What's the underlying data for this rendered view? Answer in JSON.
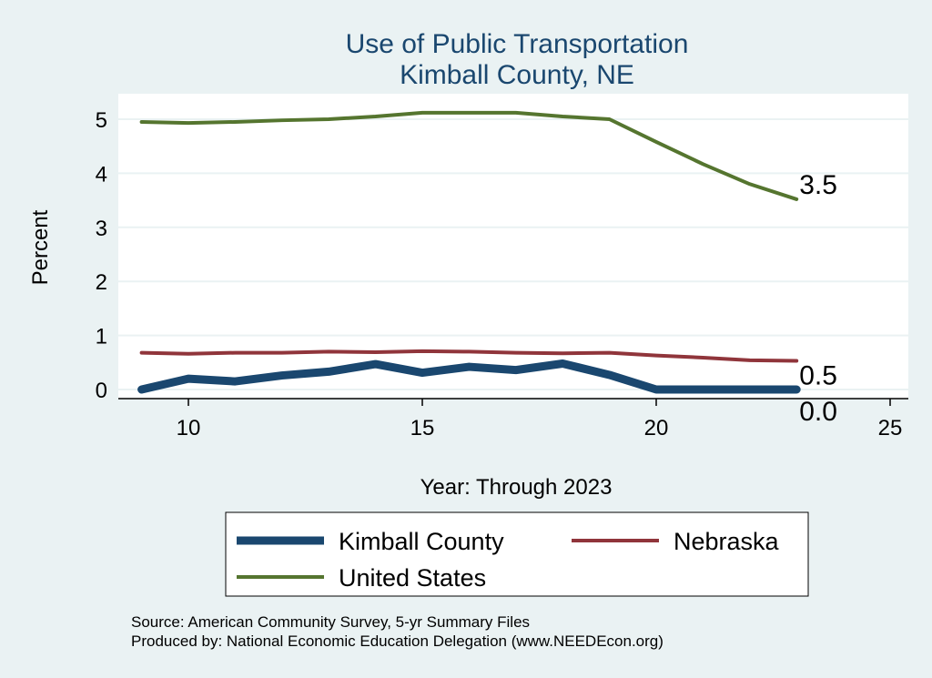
{
  "chart_data": {
    "type": "line",
    "title": "Use of Public Transportation",
    "subtitle": "Kimball County, NE",
    "xlabel": "Year: Through 2023",
    "ylabel": "Percent",
    "xlim": [
      8.5,
      25.5
    ],
    "ylim": [
      0,
      5.3
    ],
    "xticks": [
      10,
      15,
      20,
      25
    ],
    "yticks": [
      0,
      1,
      2,
      3,
      4,
      5
    ],
    "grid": true,
    "legend_position": "bottom",
    "x": [
      9,
      10,
      11,
      12,
      13,
      14,
      15,
      16,
      17,
      18,
      19,
      20,
      21,
      22,
      23
    ],
    "series": [
      {
        "name": "Kimball County",
        "color": "#1a476f",
        "width": 9,
        "values": [
          0.0,
          0.2,
          0.15,
          0.26,
          0.33,
          0.47,
          0.31,
          0.42,
          0.36,
          0.48,
          0.27,
          0.0,
          0.0,
          0.0,
          0.0
        ],
        "end_label": "0.0"
      },
      {
        "name": "Nebraska",
        "color": "#90353b",
        "width": 4,
        "values": [
          0.68,
          0.66,
          0.68,
          0.68,
          0.7,
          0.69,
          0.71,
          0.7,
          0.68,
          0.67,
          0.68,
          0.63,
          0.59,
          0.54,
          0.53
        ],
        "end_label": "0.5"
      },
      {
        "name": "United States",
        "color": "#55752f",
        "width": 4,
        "values": [
          4.95,
          4.93,
          4.95,
          4.98,
          5.0,
          5.05,
          5.12,
          5.12,
          5.12,
          5.05,
          5.0,
          4.58,
          4.17,
          3.8,
          3.52
        ],
        "end_label": "3.5"
      }
    ]
  },
  "notes": {
    "source": "Source: American Community Survey, 5-yr Summary Files",
    "produced": "Produced by: National Economic Education Delegation (www.NEEDEcon.org)"
  }
}
